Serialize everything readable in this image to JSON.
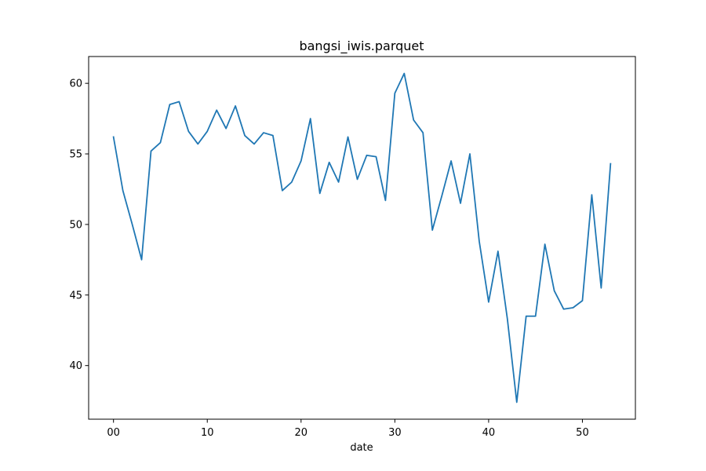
{
  "chart_data": {
    "type": "line",
    "title": "bangsi_iwis.parquet",
    "xlabel": "date",
    "ylabel": "",
    "xlim": [
      -2.65,
      55.65
    ],
    "ylim": [
      36.2,
      61.9
    ],
    "xticks": [
      0,
      10,
      20,
      30,
      40,
      50
    ],
    "xtick_labels": [
      "00",
      "10",
      "20",
      "30",
      "40",
      "50"
    ],
    "yticks": [
      40,
      45,
      50,
      55,
      60
    ],
    "grid": false,
    "legend": "none",
    "series": [
      {
        "color": "#1f77b4",
        "x": [
          0,
          1,
          2,
          3,
          4,
          5,
          6,
          7,
          8,
          9,
          10,
          11,
          12,
          13,
          14,
          15,
          16,
          17,
          18,
          19,
          20,
          21,
          22,
          23,
          24,
          25,
          26,
          27,
          28,
          29,
          30,
          31,
          32,
          33,
          34,
          35,
          36,
          37,
          38,
          39,
          40,
          41,
          42,
          43,
          44,
          45,
          46,
          47,
          48,
          49,
          50,
          51,
          52,
          53
        ],
        "values": [
          56.2,
          52.4,
          50.0,
          47.5,
          55.2,
          55.8,
          58.5,
          58.7,
          56.6,
          55.7,
          56.6,
          58.1,
          56.8,
          58.4,
          56.3,
          55.7,
          56.5,
          56.3,
          52.4,
          53.0,
          54.5,
          57.5,
          52.2,
          54.4,
          53.0,
          56.2,
          53.2,
          54.9,
          54.8,
          51.7,
          59.3,
          60.7,
          57.4,
          56.5,
          49.6,
          52.0,
          54.5,
          51.5,
          55.0,
          48.8,
          44.5,
          48.1,
          43.3,
          37.4,
          43.5,
          43.5,
          48.6,
          45.3,
          44.0,
          44.1,
          44.6,
          52.1,
          45.5,
          54.3
        ]
      }
    ]
  }
}
